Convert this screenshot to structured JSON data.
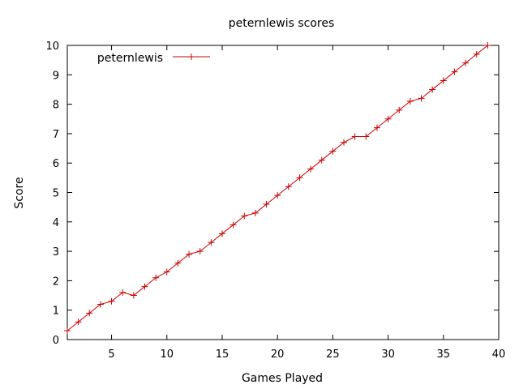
{
  "chart_data": {
    "type": "line",
    "title": "peternlewis scores",
    "xlabel": "Games Played",
    "ylabel": "Score",
    "xlim": [
      1,
      40
    ],
    "ylim": [
      0,
      10
    ],
    "x_ticks": [
      5,
      10,
      15,
      20,
      25,
      30,
      35,
      40
    ],
    "y_ticks": [
      0,
      1,
      2,
      3,
      4,
      5,
      6,
      7,
      8,
      9,
      10
    ],
    "grid": false,
    "legend_position": "top-left",
    "series": [
      {
        "name": "peternlewis",
        "color": "#cc0000",
        "marker": "plus",
        "x": [
          1,
          2,
          3,
          4,
          5,
          6,
          7,
          8,
          9,
          10,
          11,
          12,
          13,
          14,
          15,
          16,
          17,
          18,
          19,
          20,
          21,
          22,
          23,
          24,
          25,
          26,
          27,
          28,
          29,
          30,
          31,
          32,
          33,
          34,
          35,
          36,
          37,
          38,
          39
        ],
        "y": [
          0.3,
          0.6,
          0.9,
          1.2,
          1.3,
          1.6,
          1.5,
          1.8,
          2.1,
          2.3,
          2.6,
          2.9,
          3.0,
          3.3,
          3.6,
          3.9,
          4.2,
          4.3,
          4.6,
          4.9,
          5.2,
          5.5,
          5.8,
          6.1,
          6.4,
          6.7,
          6.9,
          6.9,
          7.2,
          7.5,
          7.8,
          8.1,
          8.2,
          8.5,
          8.8,
          9.1,
          9.4,
          9.7,
          10.0
        ]
      }
    ]
  }
}
